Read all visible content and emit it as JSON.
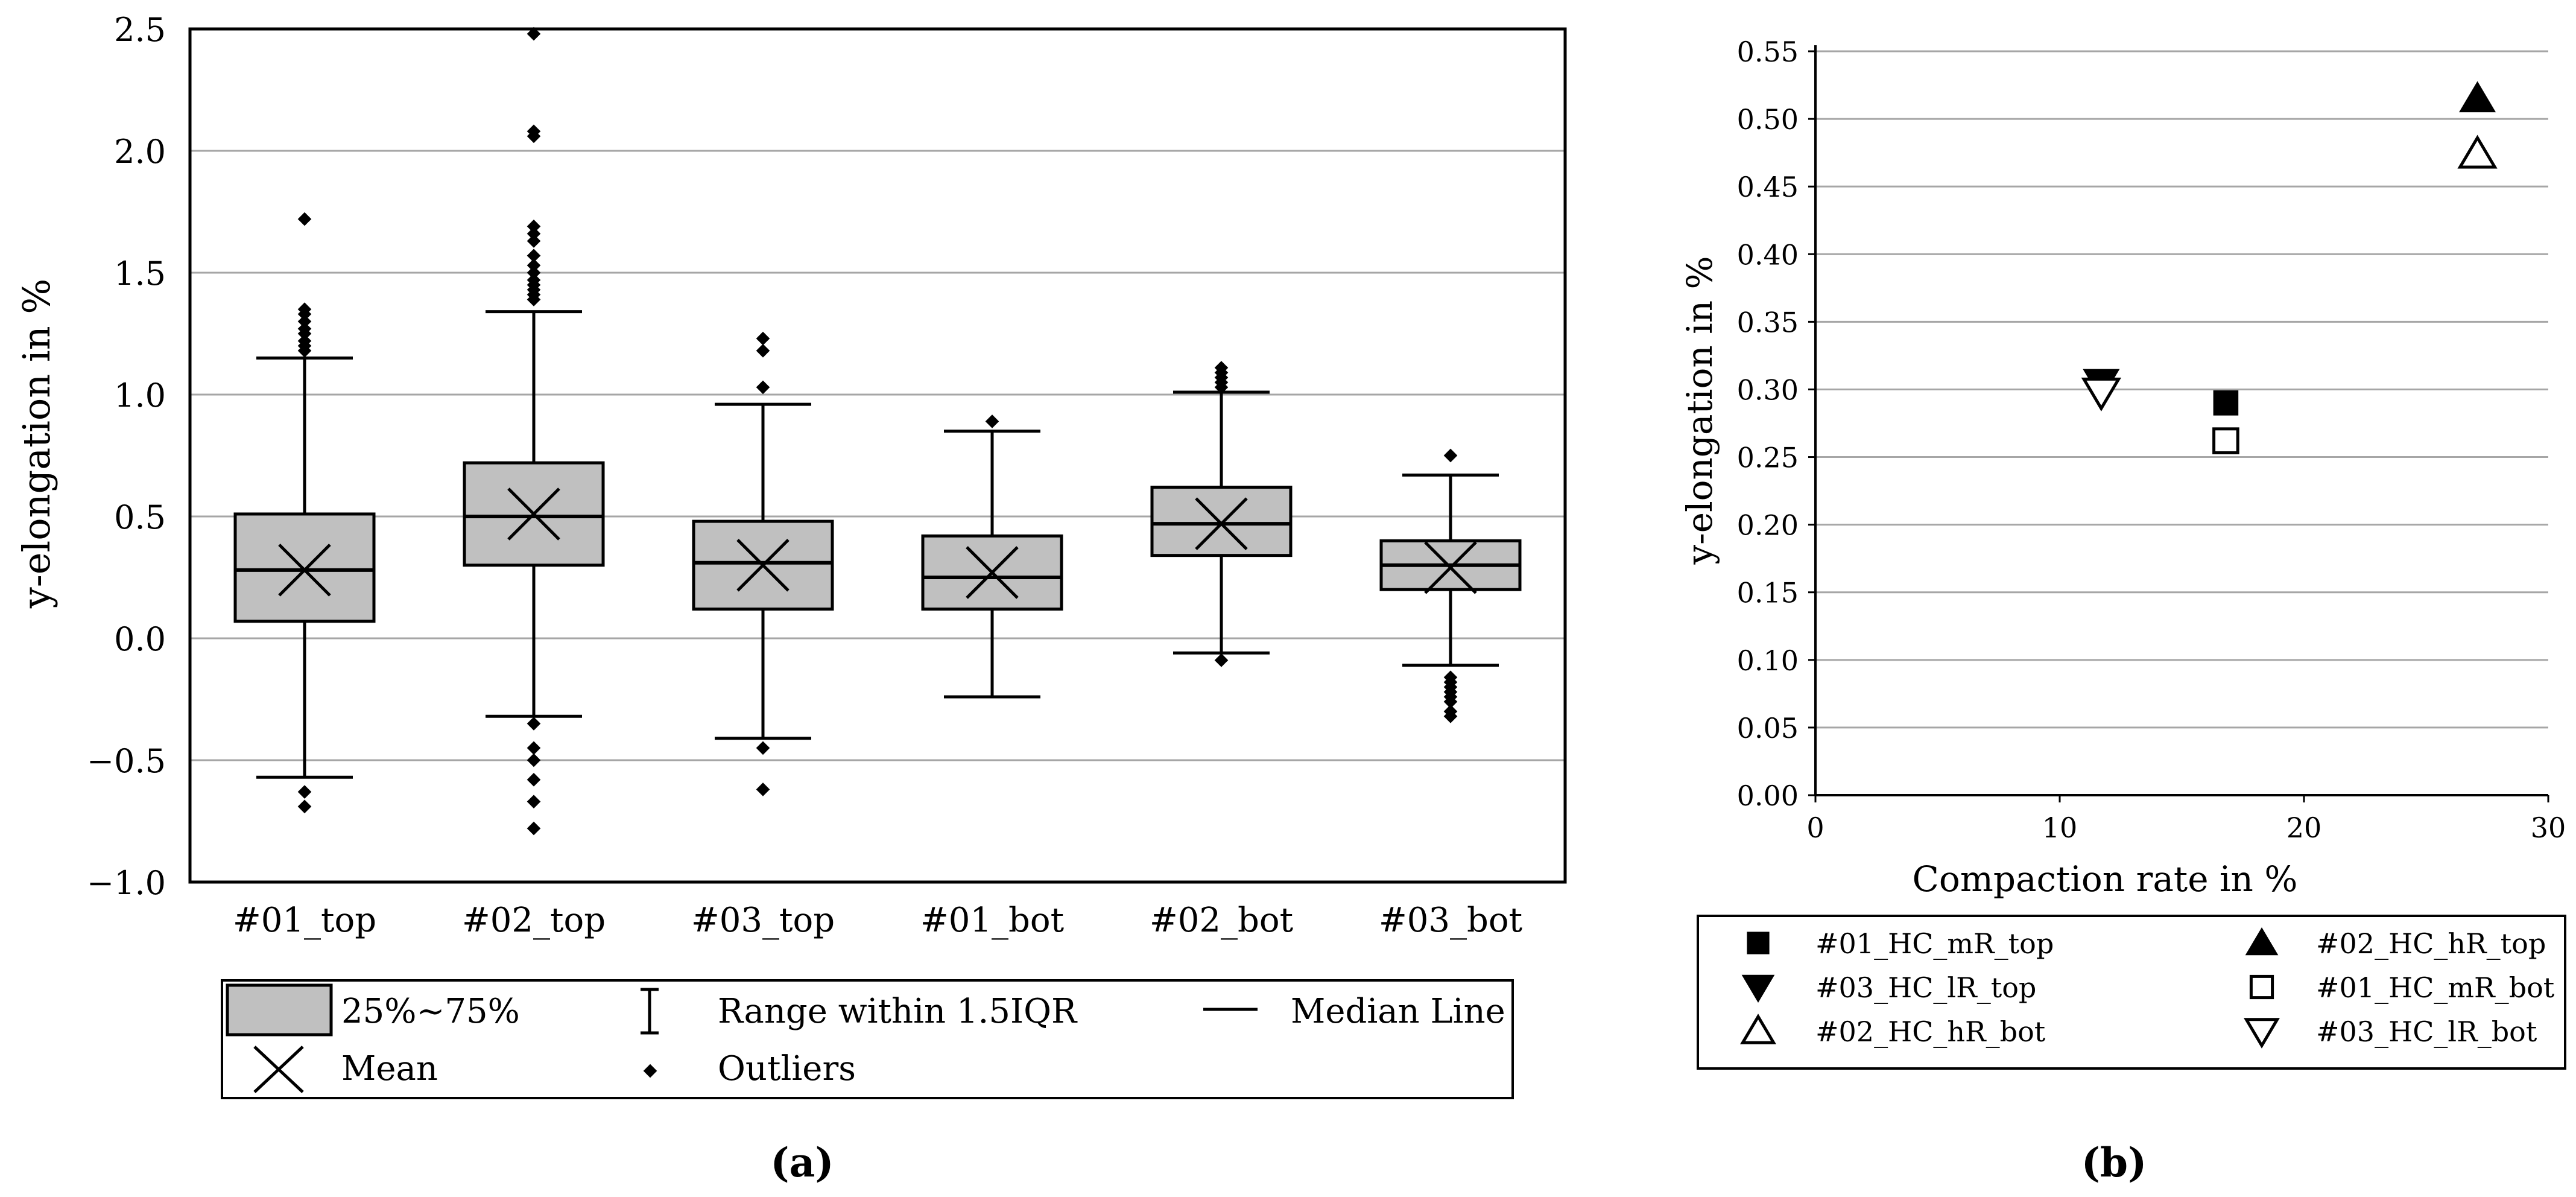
{
  "chart_data": [
    {
      "type": "box",
      "panel_label": "(a)",
      "ylabel": "y-elongation in %",
      "xlabel": "",
      "ylim": [
        -1.0,
        2.5
      ],
      "yticks": [
        -1.0,
        -0.5,
        0.0,
        0.5,
        1.0,
        1.5,
        2.0,
        2.5
      ],
      "ytick_labels": [
        "−1.0",
        "−0.5",
        "0.0",
        "0.5",
        "1.0",
        "1.5",
        "2.0",
        "2.5"
      ],
      "grid": true,
      "categories": [
        "#01_top",
        "#02_top",
        "#03_top",
        "#01_bot",
        "#02_bot",
        "#03_bot"
      ],
      "boxes": [
        {
          "category": "#01_top",
          "whisker_low": -0.57,
          "q1": 0.07,
          "median": 0.28,
          "q3": 0.51,
          "whisker_high": 1.15,
          "mean": 0.28,
          "outliers": [
            1.72,
            1.35,
            1.33,
            1.3,
            1.27,
            1.25,
            1.22,
            1.2,
            1.18,
            -0.63,
            -0.69
          ]
        },
        {
          "category": "#02_top",
          "whisker_low": -0.32,
          "q1": 0.3,
          "median": 0.5,
          "q3": 0.72,
          "whisker_high": 1.34,
          "mean": 0.51,
          "outliers": [
            2.48,
            2.08,
            2.06,
            1.69,
            1.66,
            1.63,
            1.57,
            1.53,
            1.5,
            1.47,
            1.45,
            1.43,
            1.41,
            1.39,
            -0.35,
            -0.45,
            -0.5,
            -0.58,
            -0.67,
            -0.78
          ]
        },
        {
          "category": "#03_top",
          "whisker_low": -0.41,
          "q1": 0.12,
          "median": 0.31,
          "q3": 0.48,
          "whisker_high": 0.96,
          "mean": 0.3,
          "outliers": [
            1.23,
            1.18,
            1.03,
            -0.45,
            -0.62
          ]
        },
        {
          "category": "#01_bot",
          "whisker_low": -0.24,
          "q1": 0.12,
          "median": 0.25,
          "q3": 0.42,
          "whisker_high": 0.85,
          "mean": 0.27,
          "outliers": [
            0.89
          ]
        },
        {
          "category": "#02_bot",
          "whisker_low": -0.06,
          "q1": 0.34,
          "median": 0.47,
          "q3": 0.62,
          "whisker_high": 1.01,
          "mean": 0.47,
          "outliers": [
            1.11,
            1.09,
            1.07,
            1.05,
            1.03,
            -0.09
          ]
        },
        {
          "category": "#03_bot",
          "whisker_low": -0.11,
          "q1": 0.2,
          "median": 0.3,
          "q3": 0.4,
          "whisker_high": 0.67,
          "mean": 0.29,
          "outliers": [
            0.75,
            -0.16,
            -0.18,
            -0.2,
            -0.22,
            -0.24,
            -0.26,
            -0.3,
            -0.32
          ]
        }
      ],
      "legend": {
        "box": "25%~75%",
        "range": "Range within 1.5IQR",
        "median": "Median Line",
        "mean": "Mean",
        "outliers": "Outliers"
      }
    },
    {
      "type": "scatter",
      "panel_label": "(b)",
      "xlabel": "Compaction rate in %",
      "ylabel": "y-elongation in %",
      "xlim": [
        0,
        30
      ],
      "ylim": [
        0.0,
        0.55
      ],
      "xticks": [
        0,
        10,
        20,
        30
      ],
      "xtick_labels": [
        "0",
        "10",
        "20",
        "30"
      ],
      "yticks": [
        0.0,
        0.05,
        0.1,
        0.15,
        0.2,
        0.25,
        0.3,
        0.35,
        0.4,
        0.45,
        0.5,
        0.55
      ],
      "ytick_labels": [
        "0.00",
        "0.05",
        "0.10",
        "0.15",
        "0.20",
        "0.25",
        "0.30",
        "0.35",
        "0.40",
        "0.45",
        "0.50",
        "0.55"
      ],
      "grid": true,
      "series": [
        {
          "name": "#01_HC_mR_top",
          "marker": "square-filled",
          "x": 16.8,
          "y": 0.29
        },
        {
          "name": "#02_HC_hR_top",
          "marker": "triangle-up-filled",
          "x": 27.1,
          "y": 0.515
        },
        {
          "name": "#03_HC_lR_top",
          "marker": "triangle-down-filled",
          "x": 11.7,
          "y": 0.305
        },
        {
          "name": "#01_HC_mR_bot",
          "marker": "square-open",
          "x": 16.8,
          "y": 0.262
        },
        {
          "name": "#02_HC_hR_bot",
          "marker": "triangle-up-open",
          "x": 27.1,
          "y": 0.474
        },
        {
          "name": "#03_HC_lR_bot",
          "marker": "triangle-down-open",
          "x": 11.7,
          "y": 0.298
        }
      ],
      "legend_order": [
        "#01_HC_mR_top",
        "#02_HC_hR_top",
        "#03_HC_lR_top",
        "#01_HC_mR_bot",
        "#02_HC_hR_bot",
        "#03_HC_lR_bot"
      ]
    }
  ]
}
